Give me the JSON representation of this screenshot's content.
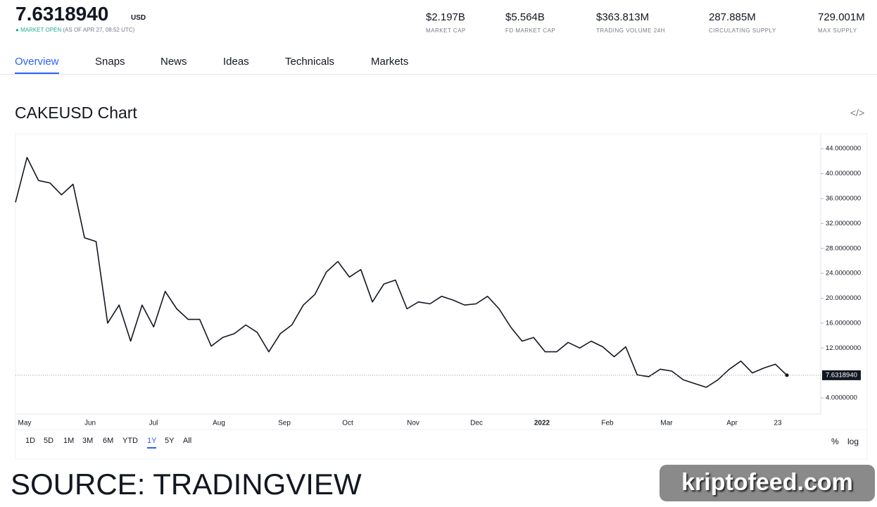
{
  "header": {
    "price": "7.6318940",
    "currency": "USD",
    "status": "MARKET OPEN",
    "as_of": "(AS OF APR 27, 08:52 UTC)",
    "stats": [
      {
        "value": "$2.197B",
        "label": "MARKET CAP"
      },
      {
        "value": "$5.564B",
        "label": "FD MARKET CAP"
      },
      {
        "value": "$363.813M",
        "label": "TRADING VOLUME 24H"
      },
      {
        "value": "287.885M",
        "label": "CIRCULATING SUPPLY"
      },
      {
        "value": "729.001M",
        "label": "MAX SUPPLY"
      }
    ]
  },
  "tabs": [
    "Overview",
    "Snaps",
    "News",
    "Ideas",
    "Technicals",
    "Markets"
  ],
  "chart_title": "CAKEUSD Chart",
  "chart_data": {
    "type": "line",
    "color": "#131722",
    "x_tick_labels": [
      "May",
      "Jun",
      "Jul",
      "Aug",
      "Sep",
      "Oct",
      "Nov",
      "Dec",
      "2022",
      "Feb",
      "Mar",
      "Apr",
      "23"
    ],
    "values": [
      35.4,
      42.6,
      38.9,
      38.5,
      36.6,
      38.3,
      29.7,
      29.1,
      16.0,
      18.9,
      13.1,
      18.9,
      15.4,
      21.1,
      18.3,
      16.6,
      16.6,
      12.3,
      13.7,
      14.3,
      15.7,
      14.5,
      11.4,
      14.3,
      15.7,
      18.9,
      20.6,
      24.2,
      25.9,
      23.4,
      24.6,
      19.4,
      22.3,
      22.9,
      18.3,
      19.4,
      19.1,
      20.3,
      19.7,
      18.9,
      19.1,
      20.3,
      18.3,
      15.4,
      13.1,
      13.7,
      11.4,
      11.4,
      12.9,
      12.0,
      13.1,
      12.2,
      10.6,
      12.2,
      7.7,
      7.4,
      8.6,
      8.3,
      6.9,
      6.3,
      5.7,
      6.9,
      8.6,
      9.9,
      8.0,
      8.8,
      9.4,
      7.631894
    ],
    "ylim": [
      1.4,
      46.4
    ],
    "yticks": [
      {
        "value": 4,
        "label": "4.0000000"
      },
      {
        "value": 12,
        "label": "12.0000000"
      },
      {
        "value": 16,
        "label": "16.0000000"
      },
      {
        "value": 20,
        "label": "20.0000000"
      },
      {
        "value": 24,
        "label": "24.0000000"
      },
      {
        "value": 28,
        "label": "28.0000000"
      },
      {
        "value": 32,
        "label": "32.0000000"
      },
      {
        "value": 36,
        "label": "36.0000000"
      },
      {
        "value": 40,
        "label": "40.0000000"
      },
      {
        "value": 44,
        "label": "44.0000000"
      }
    ],
    "last_price": {
      "value": 7.631894,
      "label": "7.6318940"
    }
  },
  "ranges": [
    "1D",
    "5D",
    "1M",
    "3M",
    "6M",
    "YTD",
    "1Y",
    "5Y",
    "All"
  ],
  "scale_options": [
    "%",
    "log"
  ],
  "footer": {
    "source": "SOURCE: TRADINGVIEW",
    "watermark": "kriptofeed.com"
  }
}
